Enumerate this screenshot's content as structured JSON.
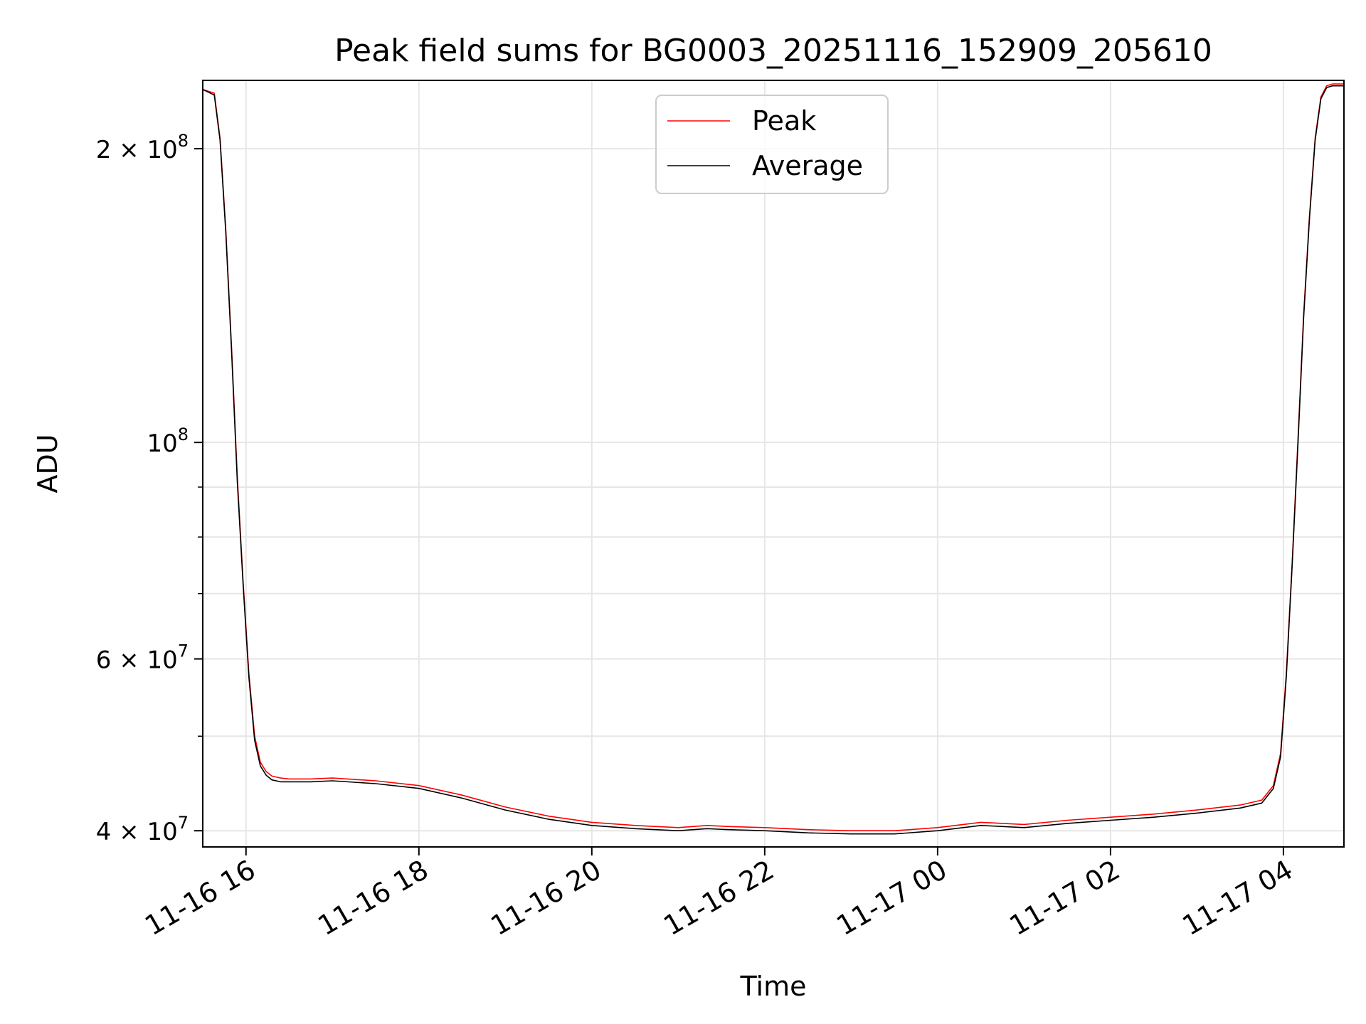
{
  "chart_data": {
    "type": "line",
    "title": "Peak field sums for BG0003_20251116_152909_205610",
    "xlabel": "Time",
    "ylabel": "ADU",
    "yscale": "log",
    "xlim": [
      "2025-11-16 15:30",
      "2025-11-17 04:42"
    ],
    "ylim": [
      38500000,
      235000000
    ],
    "grid": true,
    "legend_position": "top-center",
    "x_ticks": [
      {
        "at": "2025-11-16 16:00",
        "label": "11-16 16"
      },
      {
        "at": "2025-11-16 18:00",
        "label": "11-16 18"
      },
      {
        "at": "2025-11-16 20:00",
        "label": "11-16 20"
      },
      {
        "at": "2025-11-16 22:00",
        "label": "11-16 22"
      },
      {
        "at": "2025-11-17 00:00",
        "label": "11-17 00"
      },
      {
        "at": "2025-11-17 02:00",
        "label": "11-17 02"
      },
      {
        "at": "2025-11-17 04:00",
        "label": "11-17 04"
      }
    ],
    "y_ticks": [
      {
        "value": 40000000,
        "base": "4 × 10",
        "exp": "7"
      },
      {
        "value": 60000000,
        "base": "6 × 10",
        "exp": "7"
      },
      {
        "value": 100000000,
        "base": "10",
        "exp": "8"
      },
      {
        "value": 200000000,
        "base": "2 × 10",
        "exp": "8"
      }
    ],
    "series": [
      {
        "name": "Peak",
        "color": "#ff0000",
        "x": [
          "2025-11-16 15:30",
          "2025-11-16 15:38",
          "2025-11-16 15:42",
          "2025-11-16 15:46",
          "2025-11-16 15:50",
          "2025-11-16 15:54",
          "2025-11-16 15:58",
          "2025-11-16 16:02",
          "2025-11-16 16:06",
          "2025-11-16 16:10",
          "2025-11-16 16:14",
          "2025-11-16 16:18",
          "2025-11-16 16:24",
          "2025-11-16 16:30",
          "2025-11-16 16:45",
          "2025-11-16 17:00",
          "2025-11-16 17:30",
          "2025-11-16 18:00",
          "2025-11-16 18:30",
          "2025-11-16 19:00",
          "2025-11-16 19:30",
          "2025-11-16 20:00",
          "2025-11-16 20:30",
          "2025-11-16 21:00",
          "2025-11-16 21:20",
          "2025-11-16 21:35",
          "2025-11-16 22:00",
          "2025-11-16 22:30",
          "2025-11-16 23:00",
          "2025-11-16 23:30",
          "2025-11-17 00:00",
          "2025-11-17 00:30",
          "2025-11-17 01:00",
          "2025-11-17 01:30",
          "2025-11-17 02:00",
          "2025-11-17 02:30",
          "2025-11-17 03:00",
          "2025-11-17 03:30",
          "2025-11-17 03:45",
          "2025-11-17 03:53",
          "2025-11-17 03:58",
          "2025-11-17 04:02",
          "2025-11-17 04:06",
          "2025-11-17 04:10",
          "2025-11-17 04:14",
          "2025-11-17 04:18",
          "2025-11-17 04:22",
          "2025-11-17 04:26",
          "2025-11-17 04:30",
          "2025-11-17 04:34",
          "2025-11-17 04:42"
        ],
        "y": [
          230000000,
          228000000,
          205000000,
          165000000,
          125000000,
          92000000,
          72000000,
          58000000,
          50000000,
          47000000,
          46000000,
          45500000,
          45300000,
          45200000,
          45200000,
          45300000,
          45000000,
          44500000,
          43500000,
          42300000,
          41400000,
          40800000,
          40500000,
          40300000,
          40500000,
          40400000,
          40300000,
          40100000,
          40000000,
          40000000,
          40300000,
          40800000,
          40600000,
          41000000,
          41300000,
          41600000,
          42000000,
          42500000,
          43000000,
          44500000,
          48000000,
          58000000,
          75000000,
          100000000,
          135000000,
          170000000,
          205000000,
          226000000,
          232000000,
          233000000,
          233000000
        ]
      },
      {
        "name": "Average",
        "color": "#000000",
        "x": [
          "2025-11-16 15:30",
          "2025-11-16 15:38",
          "2025-11-16 15:42",
          "2025-11-16 15:46",
          "2025-11-16 15:50",
          "2025-11-16 15:54",
          "2025-11-16 15:58",
          "2025-11-16 16:02",
          "2025-11-16 16:06",
          "2025-11-16 16:10",
          "2025-11-16 16:14",
          "2025-11-16 16:18",
          "2025-11-16 16:24",
          "2025-11-16 16:30",
          "2025-11-16 16:45",
          "2025-11-16 17:00",
          "2025-11-16 17:30",
          "2025-11-16 18:00",
          "2025-11-16 18:30",
          "2025-11-16 19:00",
          "2025-11-16 19:30",
          "2025-11-16 20:00",
          "2025-11-16 20:30",
          "2025-11-16 21:00",
          "2025-11-16 21:20",
          "2025-11-16 21:35",
          "2025-11-16 22:00",
          "2025-11-16 22:30",
          "2025-11-16 23:00",
          "2025-11-16 23:30",
          "2025-11-17 00:00",
          "2025-11-17 00:30",
          "2025-11-17 01:00",
          "2025-11-17 01:30",
          "2025-11-17 02:00",
          "2025-11-17 02:30",
          "2025-11-17 03:00",
          "2025-11-17 03:30",
          "2025-11-17 03:45",
          "2025-11-17 03:53",
          "2025-11-17 03:58",
          "2025-11-17 04:02",
          "2025-11-17 04:06",
          "2025-11-17 04:10",
          "2025-11-17 04:14",
          "2025-11-17 04:18",
          "2025-11-17 04:22",
          "2025-11-17 04:26",
          "2025-11-17 04:30",
          "2025-11-17 04:34",
          "2025-11-17 04:42"
        ],
        "y": [
          230000000,
          227000000,
          204000000,
          164000000,
          124000000,
          91000000,
          71500000,
          57500000,
          49500000,
          46600000,
          45600000,
          45100000,
          44900000,
          44900000,
          44900000,
          45000000,
          44700000,
          44200000,
          43200000,
          42000000,
          41100000,
          40500000,
          40200000,
          40000000,
          40200000,
          40100000,
          40000000,
          39800000,
          39700000,
          39700000,
          40000000,
          40500000,
          40300000,
          40700000,
          41000000,
          41300000,
          41700000,
          42200000,
          42700000,
          44200000,
          47600000,
          57500000,
          74500000,
          99000000,
          134000000,
          169000000,
          204000000,
          225000000,
          231000000,
          232000000,
          232000000
        ]
      }
    ]
  }
}
